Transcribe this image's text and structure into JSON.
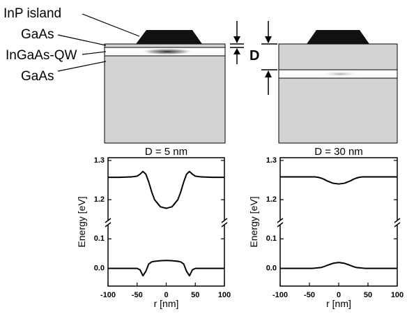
{
  "diagram": {
    "labels": [
      "InP island",
      "GaAs",
      "InGaAs-QW",
      "GaAs"
    ],
    "dimension_label": "D"
  },
  "chart_data": [
    {
      "type": "line",
      "title": "D = 5 nm",
      "x_label": "r [nm]",
      "y_label": "Energy [eV]",
      "x": [
        -100,
        -80,
        -60,
        -50,
        -45,
        -40,
        -35,
        -30,
        -25,
        -20,
        -10,
        0,
        10,
        20,
        25,
        30,
        35,
        40,
        45,
        50,
        60,
        80,
        100
      ],
      "series": [
        {
          "color": "#000000",
          "values": [
            1.257,
            1.257,
            1.258,
            1.26,
            1.265,
            1.272,
            1.265,
            1.245,
            1.22,
            1.2,
            1.182,
            1.178,
            1.182,
            1.2,
            1.22,
            1.245,
            1.265,
            1.272,
            1.265,
            1.26,
            1.258,
            1.257,
            1.257
          ]
        },
        {
          "color": "#000000",
          "values": [
            0.0,
            0.0,
            0.0,
            0.0,
            -0.005,
            -0.025,
            -0.01,
            0.015,
            0.022,
            0.024,
            0.026,
            0.027,
            0.026,
            0.024,
            0.022,
            0.015,
            -0.01,
            -0.025,
            -0.005,
            0.0,
            0.0,
            0.0,
            0.0
          ]
        }
      ],
      "xlim": [
        -100,
        100
      ],
      "xticks": [
        -100,
        -50,
        0,
        50,
        100
      ],
      "ylim": [
        -0.06,
        1.307
      ],
      "ybreak": [
        0.148,
        1.147
      ],
      "yticks": [
        {
          "value": 0,
          "label": "0.0"
        },
        0.1,
        1.2,
        1.3
      ]
    },
    {
      "type": "line",
      "title": "D = 30 nm",
      "x_label": "r [nm]",
      "y_label": "Energy [eV]",
      "x": [
        -100,
        -80,
        -60,
        -50,
        -45,
        -40,
        -35,
        -30,
        -25,
        -20,
        -10,
        0,
        10,
        20,
        25,
        30,
        35,
        40,
        45,
        50,
        60,
        80,
        100
      ],
      "series": [
        {
          "color": "#000000",
          "values": [
            1.258,
            1.258,
            1.258,
            1.258,
            1.258,
            1.258,
            1.257,
            1.255,
            1.252,
            1.248,
            1.242,
            1.24,
            1.242,
            1.248,
            1.252,
            1.255,
            1.257,
            1.258,
            1.258,
            1.258,
            1.258,
            1.258,
            1.258
          ]
        },
        {
          "color": "#000000",
          "values": [
            0.0,
            0.0,
            0.0,
            0.0,
            0.0,
            0.001,
            0.002,
            0.003,
            0.006,
            0.01,
            0.017,
            0.02,
            0.017,
            0.01,
            0.006,
            0.003,
            0.002,
            0.001,
            0.0,
            0.0,
            0.0,
            0.0,
            0.0
          ]
        }
      ],
      "xlim": [
        -100,
        100
      ],
      "xticks": [
        -100,
        -50,
        0,
        50,
        100
      ],
      "ylim": [
        -0.06,
        1.307
      ],
      "ybreak": [
        0.148,
        1.147
      ],
      "yticks": [
        {
          "value": 0,
          "label": "0.0"
        },
        0.1,
        1.2,
        1.3
      ]
    }
  ]
}
